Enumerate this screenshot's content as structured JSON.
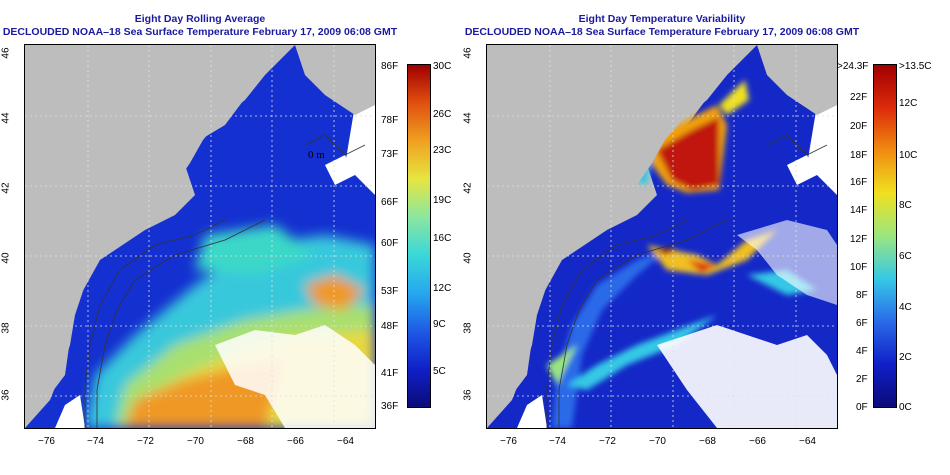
{
  "left": {
    "title1": "Eight Day Rolling Average",
    "title2": "DECLOUDED NOAA–18 Sea Surface Temperature February 17, 2009 06:08 GMT",
    "colorbar_F": [
      "86F",
      "78F",
      "73F",
      "66F",
      "60F",
      "53F",
      "48F",
      "41F",
      "36F"
    ],
    "colorbar_C": [
      "30C",
      "26C",
      "23C",
      "19C",
      "16C",
      "12C",
      "9C",
      "5C"
    ]
  },
  "right": {
    "title1": "Eight Day Temperature Variability",
    "title2": "DECLOUDED NOAA–18 Sea Surface Temperature February 17, 2009 06:08 GMT",
    "colorbar_F": [
      ">24.3F",
      "22F",
      "20F",
      "18F",
      "16F",
      "14F",
      "12F",
      "10F",
      "8F",
      "6F",
      "4F",
      "2F",
      "0F"
    ],
    "colorbar_C": [
      ">13.5C",
      "12C",
      "10C",
      "8C",
      "6C",
      "4C",
      "2C",
      "0C"
    ]
  },
  "lat_ticks": [
    "46",
    "44",
    "42",
    "40",
    "38",
    "36"
  ],
  "lon_ticks": [
    "−76",
    "−74",
    "−72",
    "−70",
    "−68",
    "−66",
    "−64"
  ],
  "contour_label": "0 m",
  "colors": {
    "title": "#1a1aa0",
    "land": "#bdbdbd",
    "cloud": "#ffffff",
    "sst_scale": [
      "#0b0b78",
      "#1020c8",
      "#1e5ae6",
      "#26a8ee",
      "#3ad8d8",
      "#8ce6a0",
      "#e6e640",
      "#f0a020",
      "#e05010",
      "#a00000"
    ],
    "var_scale": [
      "#0b0b78",
      "#1020c8",
      "#2a6ae8",
      "#36c8e6",
      "#9ae680",
      "#f0e020",
      "#f08c10",
      "#dc2a0a",
      "#a00000"
    ]
  }
}
